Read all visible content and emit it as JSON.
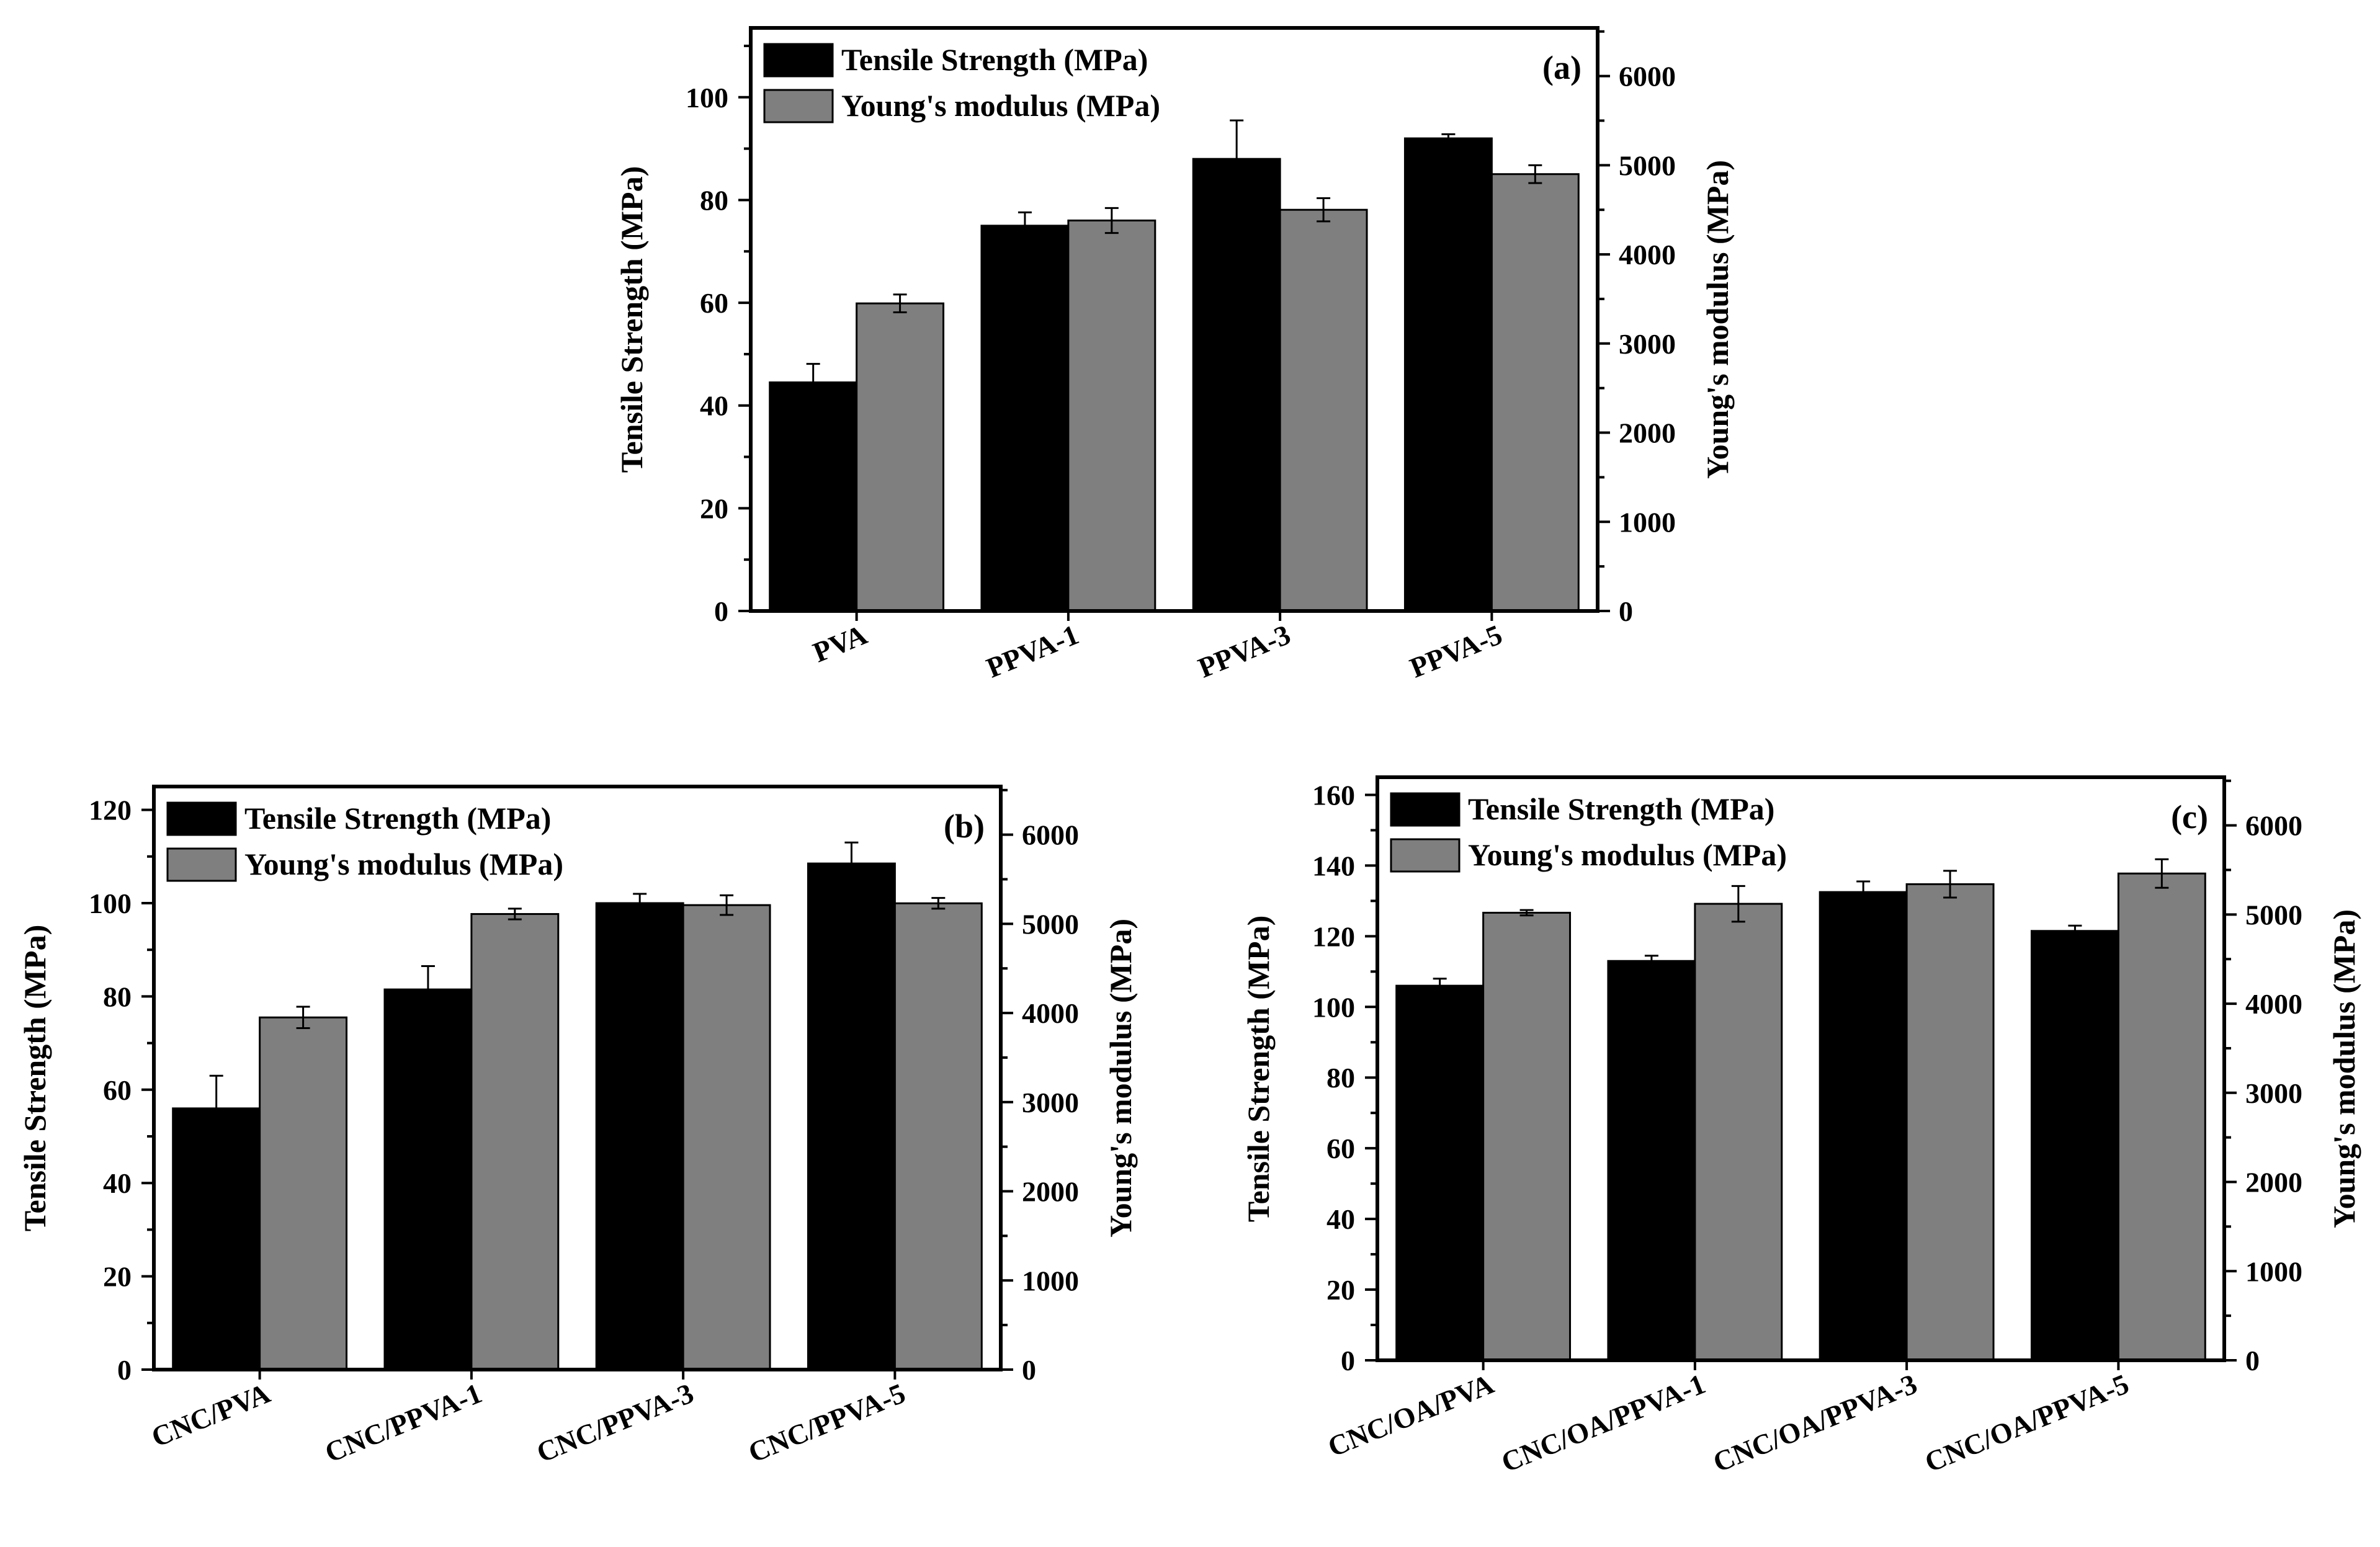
{
  "colors": {
    "tensile_bar": "#000000",
    "modulus_bar": "#7f7f7f",
    "axis": "#000000",
    "background": "#ffffff"
  },
  "chart_data": [
    {
      "type": "bar",
      "panel_label": "(a)",
      "categories": [
        "PVA",
        "PPVA-1",
        "PPVA-3",
        "PPVA-5"
      ],
      "ylabel": "Tensile Strength (MPa)",
      "y2label": "Young's modulus (MPa)",
      "ylim": [
        0,
        113.5
      ],
      "y2lim": [
        0,
        6540
      ],
      "yticks": [
        0,
        20,
        40,
        60,
        80,
        100
      ],
      "y2ticks": [
        0,
        1000,
        2000,
        3000,
        4000,
        5000,
        6000
      ],
      "legend_position": "top-left",
      "series": [
        {
          "name": "Tensile Strength (MPa)",
          "axis": "left",
          "values": [
            44.5,
            75,
            88,
            92
          ],
          "errors": [
            3.6,
            2.6,
            7.5,
            0.8
          ]
        },
        {
          "name": "Young's modulus (MPa)",
          "axis": "right",
          "values": [
            3450,
            4380,
            4500,
            4900
          ],
          "errors": [
            100,
            140,
            130,
            100
          ]
        }
      ]
    },
    {
      "type": "bar",
      "panel_label": "(b)",
      "categories": [
        "CNC/PVA",
        "CNC/PPVA-1",
        "CNC/PPVA-3",
        "CNC/PPVA-5"
      ],
      "ylabel": "Tensile Strength (MPa)",
      "y2label": "Young's modulus (MPa)",
      "ylim": [
        0,
        125
      ],
      "y2lim": [
        0,
        6540
      ],
      "yticks": [
        0,
        20,
        40,
        60,
        80,
        100,
        120
      ],
      "y2ticks": [
        0,
        1000,
        2000,
        3000,
        4000,
        5000,
        6000
      ],
      "legend_position": "top-left",
      "series": [
        {
          "name": "Tensile Strength (MPa)",
          "axis": "left",
          "values": [
            56,
            81.5,
            100,
            108.5
          ],
          "errors": [
            7,
            5,
            2,
            4.5
          ]
        },
        {
          "name": "Young's modulus (MPa)",
          "axis": "right",
          "values": [
            3950,
            5110,
            5210,
            5230
          ],
          "errors": [
            120,
            60,
            110,
            60
          ]
        }
      ]
    },
    {
      "type": "bar",
      "panel_label": "(c)",
      "categories": [
        "CNC/OA/PVA",
        "CNC/OA/PPVA-1",
        "CNC/OA/PPVA-3",
        "CNC/OA/PPVA-5"
      ],
      "ylabel": "Tensile Strength (MPa)",
      "y2label": "Young's modulus (MPa)",
      "ylim": [
        0,
        165
      ],
      "y2lim": [
        0,
        6540
      ],
      "yticks": [
        0,
        20,
        40,
        60,
        80,
        100,
        120,
        140,
        160
      ],
      "y2ticks": [
        0,
        1000,
        2000,
        3000,
        4000,
        5000,
        6000
      ],
      "legend_position": "top-left",
      "series": [
        {
          "name": "Tensile Strength (MPa)",
          "axis": "left",
          "values": [
            106,
            113,
            132.5,
            121.5
          ],
          "errors": [
            2,
            1.5,
            3,
            1.5
          ]
        },
        {
          "name": "Young's modulus (MPa)",
          "axis": "right",
          "values": [
            5020,
            5120,
            5340,
            5460
          ],
          "errors": [
            30,
            200,
            150,
            160
          ]
        }
      ]
    }
  ]
}
